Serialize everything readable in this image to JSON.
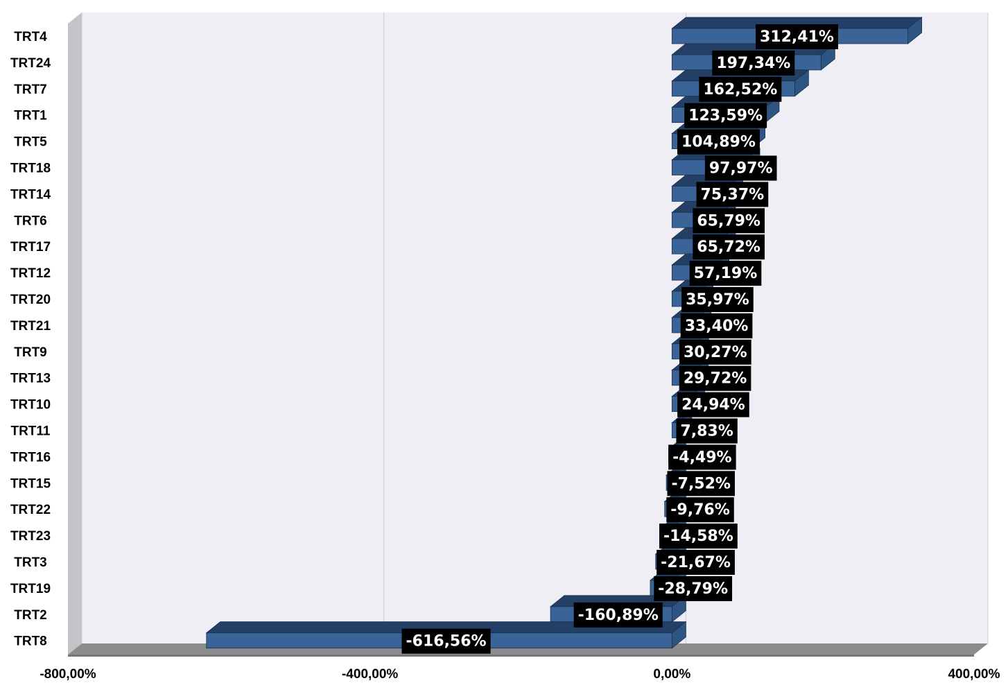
{
  "chart_data": {
    "type": "bar",
    "orientation": "horizontal",
    "style": "3d",
    "categories": [
      "TRT4",
      "TRT24",
      "TRT7",
      "TRT1",
      "TRT5",
      "TRT18",
      "TRT14",
      "TRT6",
      "TRT17",
      "TRT12",
      "TRT20",
      "TRT21",
      "TRT9",
      "TRT13",
      "TRT10",
      "TRT11",
      "TRT16",
      "TRT15",
      "TRT22",
      "TRT23",
      "TRT3",
      "TRT19",
      "TRT2",
      "TRT8"
    ],
    "values": [
      312.41,
      197.34,
      162.52,
      123.59,
      104.89,
      97.97,
      75.37,
      65.79,
      65.72,
      57.19,
      35.97,
      33.4,
      30.27,
      29.72,
      24.94,
      7.83,
      -4.49,
      -7.52,
      -9.76,
      -14.58,
      -21.67,
      -28.79,
      -160.89,
      -616.56
    ],
    "data_labels": [
      "312,41%",
      "197,34%",
      "162,52%",
      "123,59%",
      "104,89%",
      "97,97%",
      "75,37%",
      "65,79%",
      "65,72%",
      "57,19%",
      "35,97%",
      "33,40%",
      "30,27%",
      "29,72%",
      "24,94%",
      "7,83%",
      "-4,49%",
      "-7,52%",
      "-9,76%",
      "-14,58%",
      "-21,67%",
      "-28,79%",
      "-160,89%",
      "-616,56%"
    ],
    "xlim": [
      -800,
      400
    ],
    "x_ticks": [
      -800,
      -400,
      0,
      400
    ],
    "x_tick_labels": [
      "-800,00%",
      "-400,00%",
      "0,00%",
      "400,00%"
    ],
    "grid": true,
    "legend": "none",
    "colors": {
      "bar_front": "#3a6497",
      "bar_top": "#243f66",
      "bar_side": "#2e5482",
      "plot_back": "#eeeef4",
      "left_wall": "#c4c4c8",
      "floor": "#8c8c8c",
      "label_box": "#000000",
      "label_text": "#ffffff"
    }
  }
}
